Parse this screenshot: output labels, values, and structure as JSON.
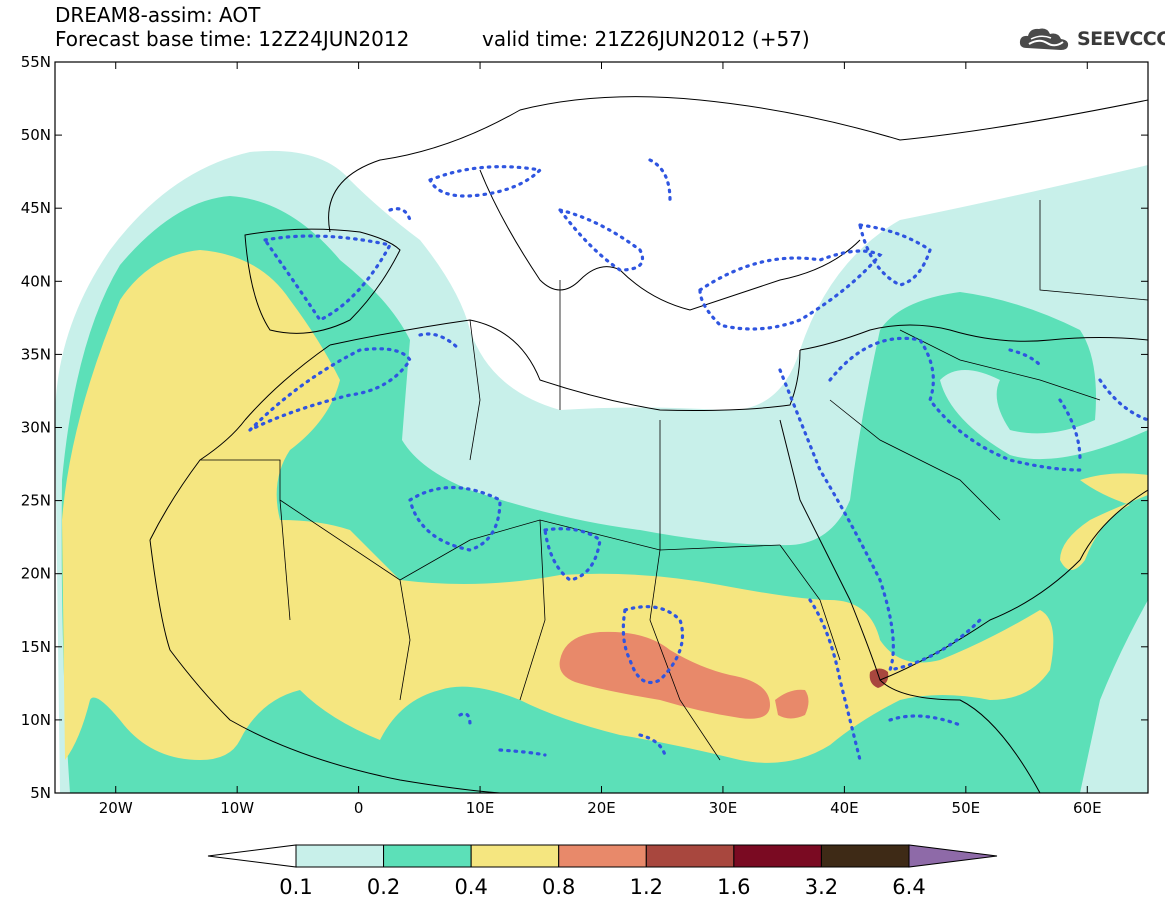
{
  "header": {
    "line1": "DREAM8-assim: AOT",
    "forecast_base": "Forecast base time: 12Z24JUN2012",
    "valid_time": "valid time: 21Z26JUN2012 (+57)"
  },
  "logo": {
    "text": "SEEVCCC",
    "icon": "cloud-icon"
  },
  "map": {
    "lat_labels": [
      "55N",
      "50N",
      "45N",
      "40N",
      "35N",
      "30N",
      "25N",
      "20N",
      "15N",
      "10N",
      "5N"
    ],
    "lon_labels": [
      "20W",
      "10W",
      "0",
      "10E",
      "20E",
      "30E",
      "40E",
      "50E",
      "60E"
    ],
    "extent": {
      "lon": [
        -25,
        65
      ],
      "lat": [
        5,
        55
      ]
    }
  },
  "colorbar": {
    "levels": [
      "0.1",
      "0.2",
      "0.4",
      "0.8",
      "1.2",
      "1.6",
      "3.2",
      "6.4"
    ],
    "colors": [
      "#ffffff",
      "#c8f0ea",
      "#5ce0b8",
      "#f5e680",
      "#e8896a",
      "#a8473e",
      "#7a0a22",
      "#3e2a16",
      "#8e6aa8"
    ]
  }
}
